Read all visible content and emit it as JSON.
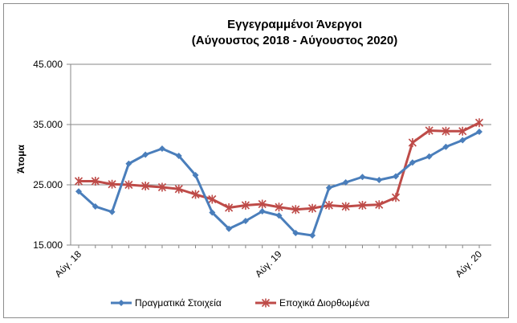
{
  "chart_data": {
    "type": "line",
    "title_line1": "Εγγεγραμμένοι Άνεργοι",
    "title_line2": "(Αύγουστος 2018 - Αύγουστος 2020)",
    "ylabel": "Άτομα",
    "xlabel": "",
    "ylim": [
      15000,
      45000
    ],
    "y_ticks": [
      15000,
      25000,
      35000,
      45000
    ],
    "y_tick_labels": [
      "15.000",
      "25.000",
      "35.000",
      "45.000"
    ],
    "x_tick_labels": [
      {
        "index": 0,
        "label": "Αύγ. 18"
      },
      {
        "index": 12,
        "label": "Αύγ. 19"
      },
      {
        "index": 24,
        "label": "Αύγ. 20"
      }
    ],
    "grid": true,
    "legend_position": "bottom",
    "series": [
      {
        "name": "Πραγματικά Στοιχεία",
        "color": "#4a7ebb",
        "marker": "diamond",
        "values": [
          23900,
          21400,
          20500,
          28500,
          30000,
          31000,
          29800,
          26600,
          20400,
          17700,
          19000,
          20600,
          19900,
          17000,
          16600,
          24500,
          25400,
          26300,
          25800,
          26400,
          28700,
          29700,
          31300,
          32400,
          33800
        ]
      },
      {
        "name": "Εποχικά Διορθωμένα",
        "color": "#be4b48",
        "marker": "star",
        "values": [
          25600,
          25600,
          25100,
          25000,
          24800,
          24600,
          24300,
          23400,
          22600,
          21200,
          21600,
          21800,
          21300,
          20900,
          21100,
          21600,
          21400,
          21600,
          21700,
          22900,
          32000,
          34000,
          33900,
          33900,
          35300
        ]
      }
    ]
  }
}
